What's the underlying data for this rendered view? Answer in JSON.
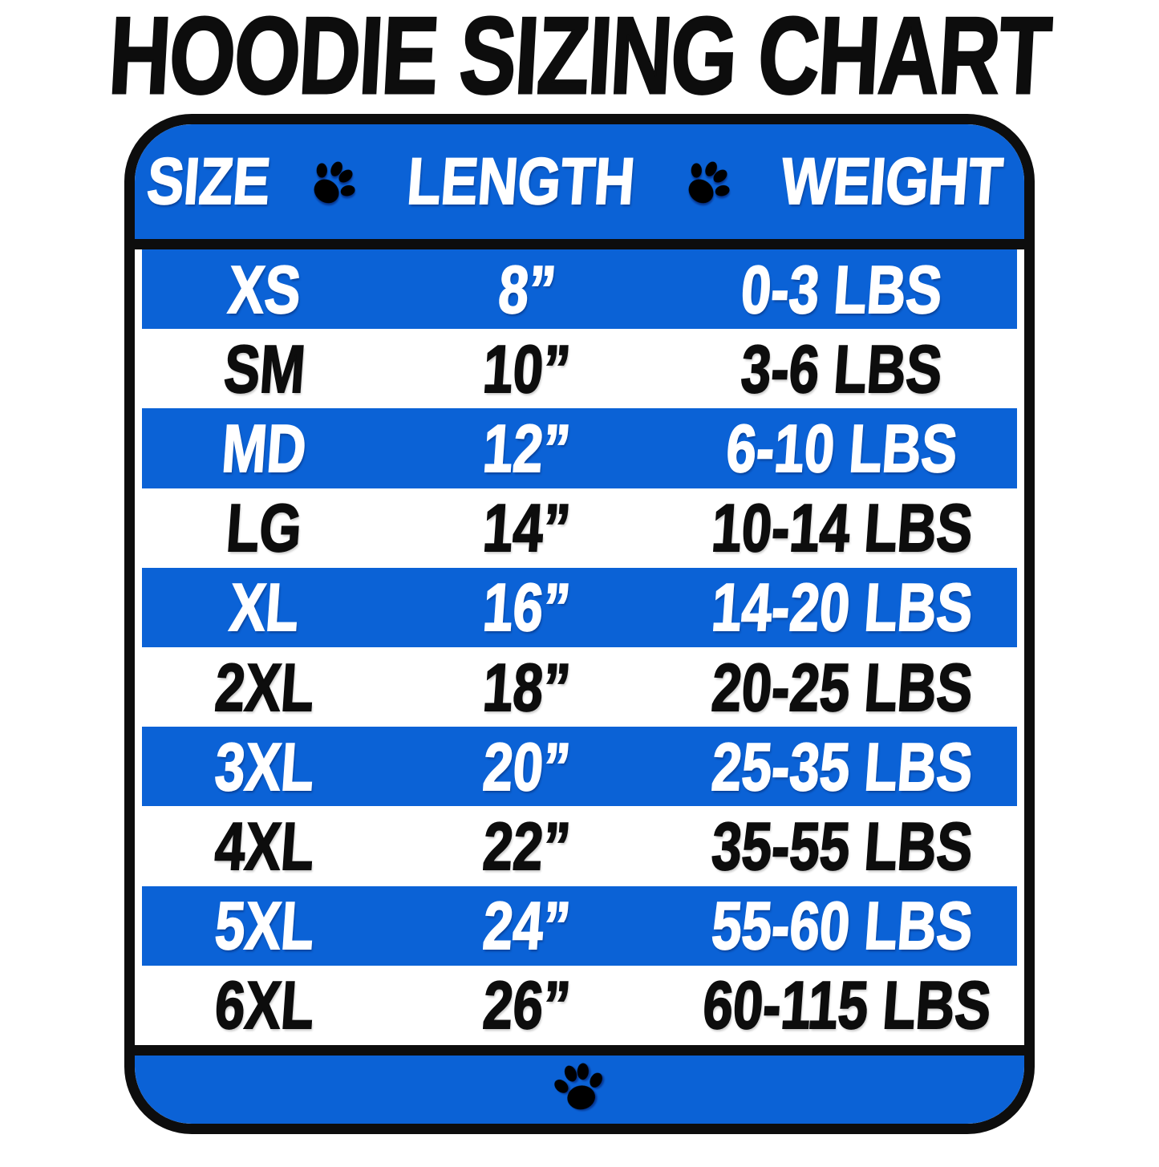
{
  "title": "HOODIE SIZING CHART",
  "colors": {
    "blue": "#0b62d6",
    "black": "#0d0d0d",
    "white": "#ffffff"
  },
  "icons": {
    "header_separator": "paw-icon",
    "footer": "paw-icon"
  },
  "chart_data": {
    "type": "table",
    "title": "HOODIE SIZING CHART",
    "columns": [
      "SIZE",
      "LENGTH",
      "WEIGHT"
    ],
    "rows": [
      [
        "XS",
        "8”",
        "0-3 LBS"
      ],
      [
        "SM",
        "10”",
        "3-6 LBS"
      ],
      [
        "MD",
        "12”",
        "6-10 LBS"
      ],
      [
        "LG",
        "14”",
        "10-14 LBS"
      ],
      [
        "XL",
        "16”",
        "14-20 LBS"
      ],
      [
        "2XL",
        "18”",
        "20-25 LBS"
      ],
      [
        "3XL",
        "20”",
        "25-35 LBS"
      ],
      [
        "4XL",
        "22”",
        "35-55 LBS"
      ],
      [
        "5XL",
        "24”",
        "55-60 LBS"
      ],
      [
        "6XL",
        "26”",
        "60-115 LBS"
      ]
    ],
    "layout": {
      "row_stripe_pattern": [
        "blue",
        "white"
      ],
      "first_row_color": "blue"
    }
  }
}
